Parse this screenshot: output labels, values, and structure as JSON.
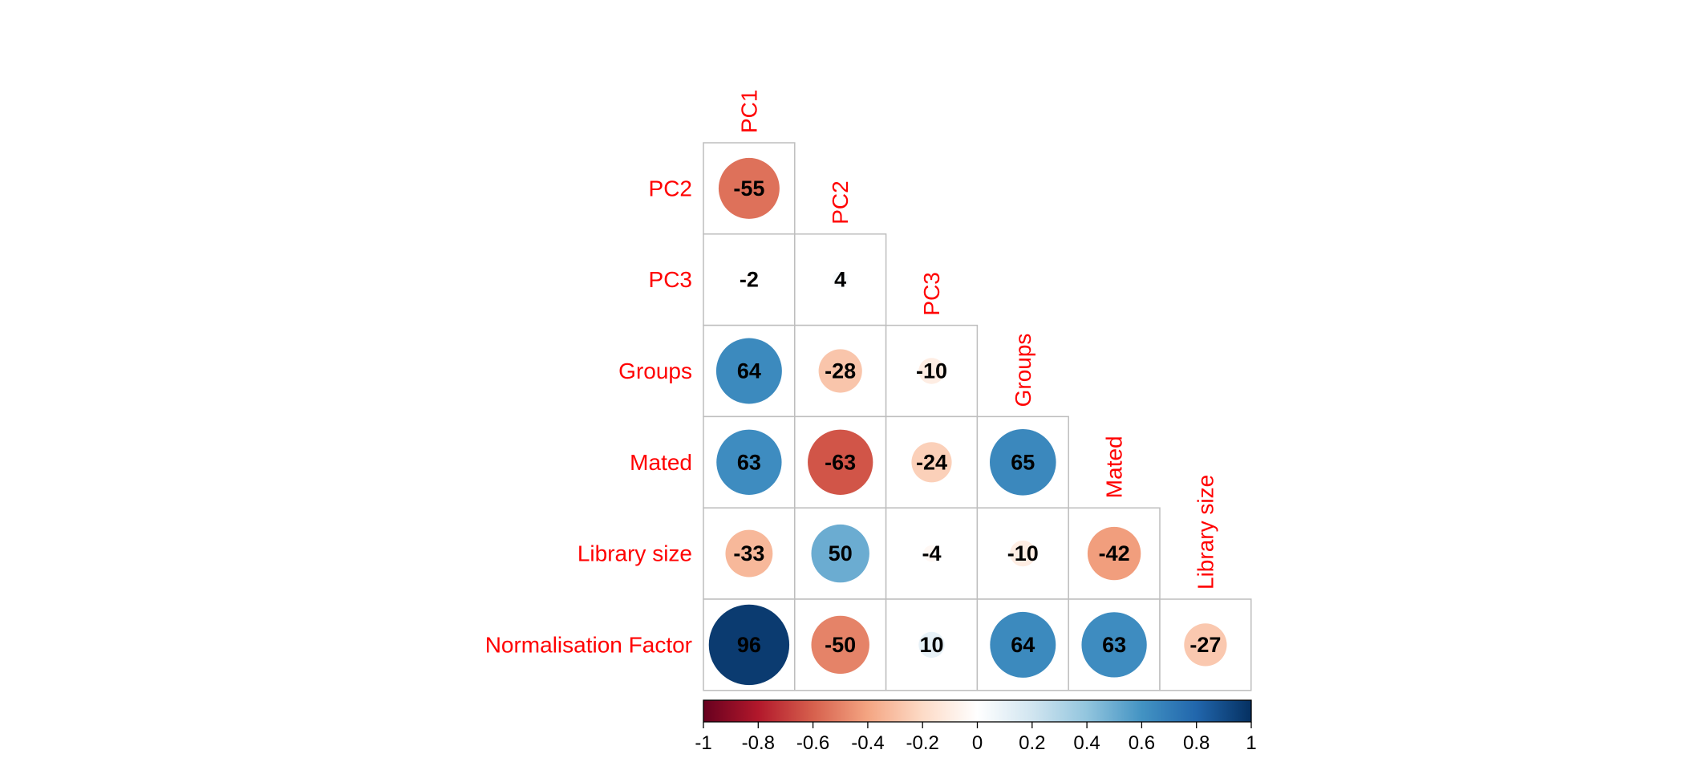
{
  "chart_data": {
    "type": "heatmap",
    "style": "corrplot-circle-lower",
    "variables": [
      "PC1",
      "PC2",
      "PC3",
      "Groups",
      "Mated",
      "Library size",
      "Normalisation Factor"
    ],
    "row_labels": [
      "PC2",
      "PC3",
      "Groups",
      "Mated",
      "Library size",
      "Normalisation Factor"
    ],
    "column_labels": [
      "PC1",
      "PC2",
      "PC3",
      "Groups",
      "Mated",
      "Library size"
    ],
    "values": [
      [
        -55
      ],
      [
        -2,
        4
      ],
      [
        64,
        -28,
        -10
      ],
      [
        63,
        -63,
        -24,
        65
      ],
      [
        -33,
        50,
        -4,
        -10,
        -42
      ],
      [
        96,
        -50,
        10,
        64,
        63,
        -27
      ]
    ],
    "value_scale": "correlation x 100",
    "color_scale": {
      "range": [
        -1,
        1
      ],
      "ticks": [
        "-1",
        "-0.8",
        "-0.6",
        "-0.4",
        "-0.2",
        "0",
        "0.2",
        "0.4",
        "0.6",
        "0.8",
        "1"
      ],
      "stops": [
        "#67001F",
        "#B2182B",
        "#D6604D",
        "#F4A582",
        "#FDDBC7",
        "#FFFFFF",
        "#D1E5F0",
        "#92C5DE",
        "#4393C3",
        "#2166AC",
        "#053061"
      ]
    },
    "label_color": "#FF0000",
    "value_text_color": "#000000",
    "grid_color": "#BEBEBE"
  }
}
